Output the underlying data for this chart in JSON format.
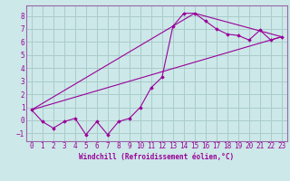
{
  "xlabel": "Windchill (Refroidissement éolien,°C)",
  "bg_color": "#cce8e8",
  "grid_color": "#aacccc",
  "line_color": "#990099",
  "marker_color": "#990099",
  "spine_color": "#9966aa",
  "xlim": [
    -0.5,
    23.5
  ],
  "ylim": [
    -1.6,
    8.8
  ],
  "yticks": [
    -1,
    0,
    1,
    2,
    3,
    4,
    5,
    6,
    7,
    8
  ],
  "xticks": [
    0,
    1,
    2,
    3,
    4,
    5,
    6,
    7,
    8,
    9,
    10,
    11,
    12,
    13,
    14,
    15,
    16,
    17,
    18,
    19,
    20,
    21,
    22,
    23
  ],
  "series1_x": [
    0,
    1,
    2,
    3,
    4,
    5,
    6,
    7,
    8,
    9,
    10,
    11,
    12,
    13,
    14,
    15,
    16,
    17,
    18,
    19,
    20,
    21,
    22,
    23
  ],
  "series1_y": [
    0.8,
    -0.1,
    -0.6,
    -0.1,
    0.15,
    -1.1,
    -0.1,
    -1.1,
    -0.1,
    0.15,
    1.0,
    2.5,
    3.3,
    7.2,
    8.2,
    8.2,
    7.6,
    7.0,
    6.6,
    6.5,
    6.15,
    6.9,
    6.15,
    6.4
  ],
  "series2_x": [
    0,
    23
  ],
  "series2_y": [
    0.8,
    6.4
  ],
  "series3_x": [
    0,
    15,
    23
  ],
  "series3_y": [
    0.8,
    8.2,
    6.4
  ],
  "label_fontsize": 5.5,
  "tick_fontsize": 5.5
}
